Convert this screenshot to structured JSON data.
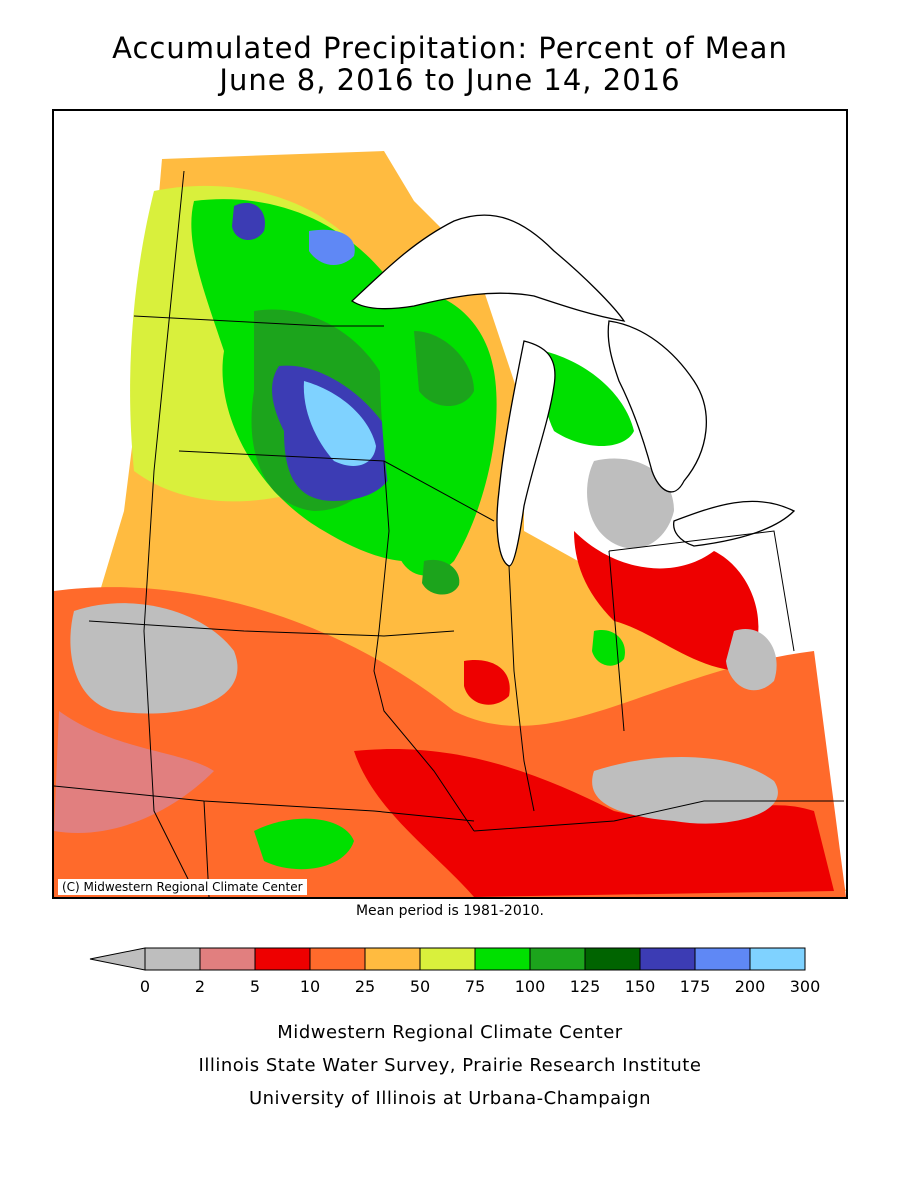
{
  "title_line1": "Accumulated Precipitation: Percent of Mean",
  "title_line2": "June 8, 2016 to June 14, 2016",
  "copyright": "(C) Midwestern Regional Climate Center",
  "mean_period": "Mean period is 1981-2010.",
  "legend": {
    "labels": [
      "0",
      "2",
      "5",
      "10",
      "25",
      "50",
      "75",
      "100",
      "125",
      "150",
      "175",
      "200",
      "300"
    ],
    "colors": [
      "#bebebe",
      "#e17f7f",
      "#ee0000",
      "#ff6a2b",
      "#ffbb40",
      "#d9f03c",
      "#00e000",
      "#1ca41c",
      "#006400",
      "#3c3cb4",
      "#5f88f5",
      "#7fd2ff"
    ]
  },
  "credits": [
    "Midwestern Regional Climate Center",
    "Illinois State Water Survey, Prairie Research Institute",
    "University of Illinois at Urbana-Champaign"
  ]
}
